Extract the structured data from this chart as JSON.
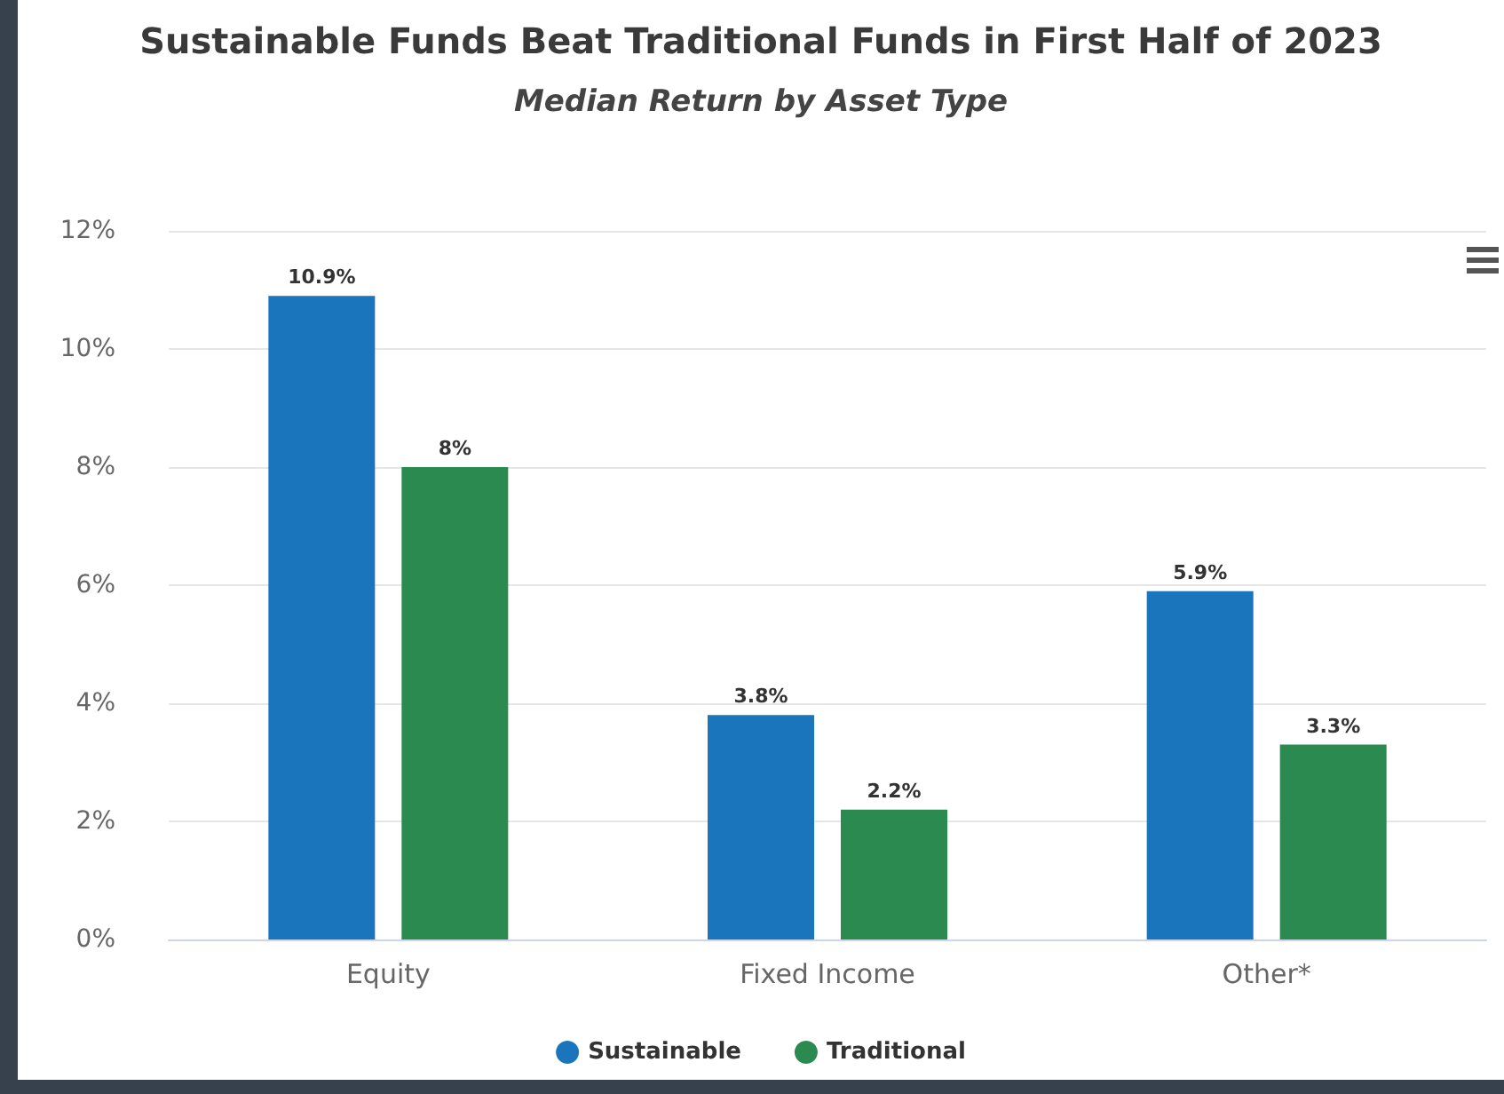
{
  "chart_data": {
    "type": "bar",
    "title": "Sustainable Funds Beat Traditional Funds in First Half of 2023",
    "subtitle": "Median Return by Asset Type",
    "categories": [
      "Equity",
      "Fixed Income",
      "Other*"
    ],
    "series": [
      {
        "name": "Sustainable",
        "color": "#1b75bc",
        "values": [
          10.9,
          3.8,
          5.9
        ],
        "value_labels": [
          "10.9%",
          "3.8%",
          "5.9%"
        ]
      },
      {
        "name": "Traditional",
        "color": "#2a8a4f",
        "values": [
          8,
          2.2,
          3.3
        ],
        "value_labels": [
          "8%",
          "2.2%",
          "3.3%"
        ]
      }
    ],
    "ylim": [
      0,
      12
    ],
    "yticks": [
      {
        "value": 0,
        "label": "0%"
      },
      {
        "value": 2,
        "label": "2%"
      },
      {
        "value": 4,
        "label": "4%"
      },
      {
        "value": 6,
        "label": "6%"
      },
      {
        "value": 8,
        "label": "8%"
      },
      {
        "value": 10,
        "label": "10%"
      },
      {
        "value": 12,
        "label": "12%"
      }
    ],
    "grid": "y",
    "legend": "bottom"
  }
}
